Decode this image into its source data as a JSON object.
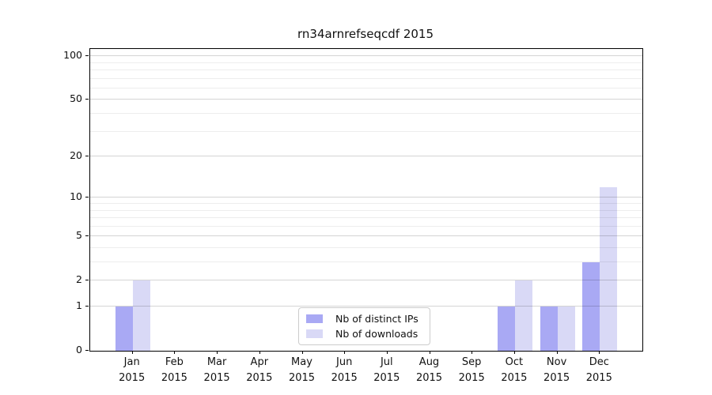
{
  "chart_data": {
    "type": "bar",
    "title": "rn34arnrefseqcdf 2015",
    "categories": [
      "Jan 2015",
      "Feb 2015",
      "Mar 2015",
      "Apr 2015",
      "May 2015",
      "Jun 2015",
      "Jul 2015",
      "Aug 2015",
      "Sep 2015",
      "Oct 2015",
      "Nov 2015",
      "Dec 2015"
    ],
    "series": [
      {
        "name": "Nb of distinct IPs",
        "color": "#a9a9f4",
        "values": [
          1,
          0,
          0,
          0,
          0,
          0,
          0,
          0,
          0,
          1,
          1,
          3
        ]
      },
      {
        "name": "Nb of downloads",
        "color": "#d9d9f6",
        "values": [
          2,
          0,
          0,
          0,
          0,
          0,
          0,
          0,
          0,
          2,
          1,
          12
        ]
      }
    ],
    "y_ticks": [
      0,
      1,
      2,
      5,
      10,
      20,
      50,
      100
    ],
    "y_tick_labels": [
      "0",
      "1",
      "2",
      "5",
      "10",
      "20",
      "50",
      "100"
    ],
    "y_minor_ticks": [
      3,
      4,
      6,
      7,
      8,
      9,
      30,
      40,
      60,
      70,
      80,
      90
    ],
    "scale": "log1p",
    "ylim": [
      0,
      112
    ],
    "xlabel": "",
    "ylabel": "",
    "grid": true,
    "legend_position": "lower center"
  }
}
